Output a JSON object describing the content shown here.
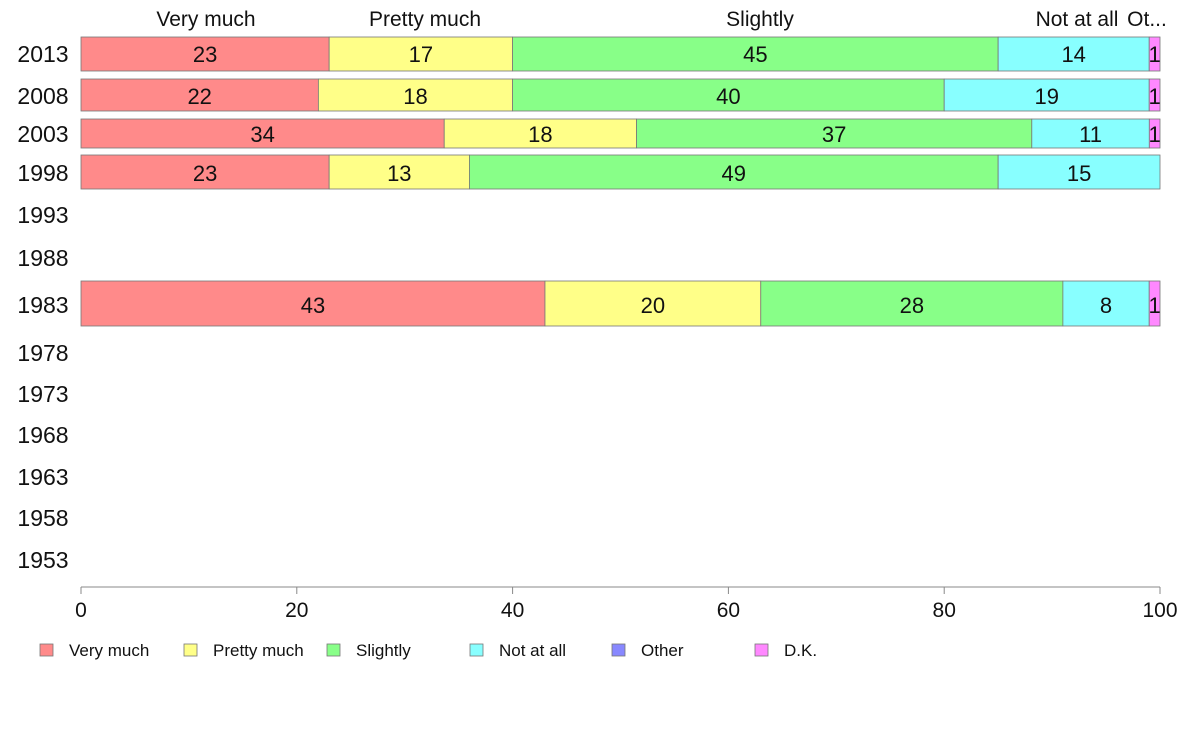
{
  "chart_data": {
    "type": "bar",
    "orientation": "horizontal",
    "stacked": true,
    "categories": [
      "2013",
      "2008",
      "2003",
      "1998",
      "1993",
      "1988",
      "1983",
      "1978",
      "1973",
      "1968",
      "1963",
      "1958",
      "1953"
    ],
    "series": [
      {
        "name": "Very much",
        "color": "#ff8a8a",
        "values": [
          23,
          22,
          34,
          23,
          null,
          null,
          43,
          null,
          null,
          null,
          null,
          null,
          null
        ]
      },
      {
        "name": "Pretty much",
        "color": "#ffff88",
        "values": [
          17,
          18,
          18,
          13,
          null,
          null,
          20,
          null,
          null,
          null,
          null,
          null,
          null
        ]
      },
      {
        "name": "Slightly",
        "color": "#88ff88",
        "values": [
          45,
          40,
          37,
          49,
          null,
          null,
          28,
          null,
          null,
          null,
          null,
          null,
          null
        ]
      },
      {
        "name": "Not at all",
        "color": "#88ffff",
        "values": [
          14,
          19,
          11,
          15,
          null,
          null,
          8,
          null,
          null,
          null,
          null,
          null,
          null
        ]
      },
      {
        "name": "Other",
        "color": "#8888ff",
        "values": [
          0,
          0,
          0,
          0,
          null,
          null,
          0,
          null,
          null,
          null,
          null,
          null,
          null
        ]
      },
      {
        "name": "D.K.",
        "color": "#ff88ff",
        "values": [
          1,
          1,
          1,
          0,
          null,
          null,
          1,
          null,
          null,
          null,
          null,
          null,
          null
        ]
      }
    ],
    "header_labels": [
      "Very much",
      "Pretty much",
      "Slightly",
      "Not at all",
      "Ot..."
    ],
    "xlim": [
      0,
      100
    ],
    "xticks": [
      0,
      20,
      40,
      60,
      80,
      100
    ],
    "grid": false,
    "legend": "bottom"
  }
}
